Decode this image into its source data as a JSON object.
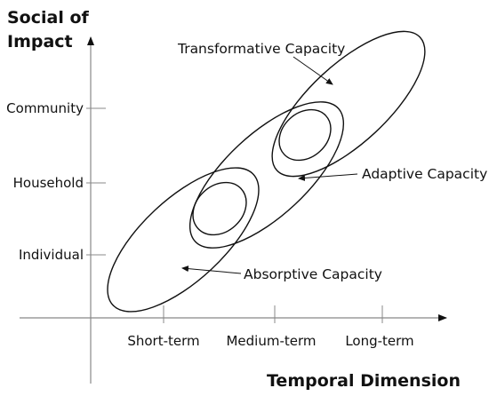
{
  "y_axis": {
    "title_line1": "Social of",
    "title_line2": "Impact",
    "ticks": [
      "Individual",
      "Household",
      "Community"
    ]
  },
  "x_axis": {
    "title": "Temporal Dimension",
    "ticks": [
      "Short-term",
      "Medium-term",
      "Long-term"
    ]
  },
  "capacities": {
    "transformative": "Transformative Capacity",
    "adaptive": "Adaptive Capacity",
    "absorptive": "Absorptive Capacity"
  }
}
